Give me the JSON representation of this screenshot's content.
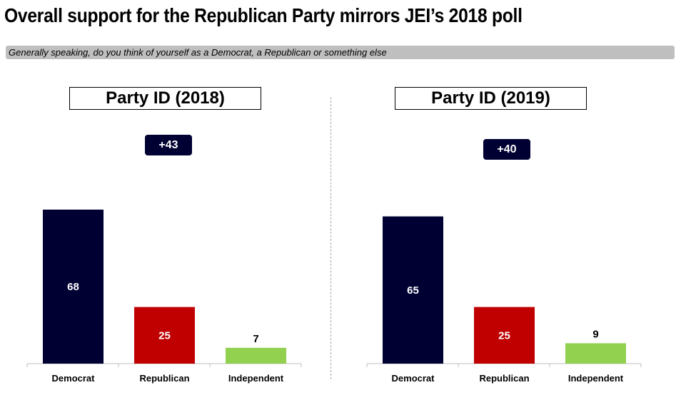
{
  "title": "Overall support for the Republican Party mirrors JEI’s 2018 poll",
  "subtitle": "Generally speaking, do you think of yourself as a Democrat, a Republican or something else",
  "colors": {
    "democrat": "#000033",
    "republican": "#c00000",
    "independent": "#92d050",
    "axis": "#bfbfbf"
  },
  "chart_data": [
    {
      "type": "bar",
      "title": "Party ID (2018)",
      "badge": "+43",
      "categories": [
        "Democrat",
        "Republican",
        "Independent"
      ],
      "values": [
        68,
        25,
        7
      ],
      "ylim": [
        0,
        100
      ],
      "grid": false
    },
    {
      "type": "bar",
      "title": "Party ID (2019)",
      "badge": "+40",
      "categories": [
        "Democrat",
        "Republican",
        "Independent"
      ],
      "values": [
        65,
        25,
        9
      ],
      "ylim": [
        0,
        100
      ],
      "grid": false
    }
  ]
}
